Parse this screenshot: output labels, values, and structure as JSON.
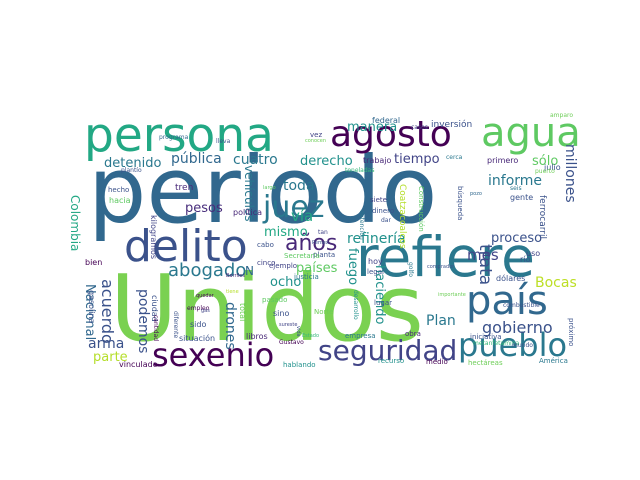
{
  "word_cloud": {
    "words": [
      {
        "text": "periodo",
        "color": "#31688e"
      },
      {
        "text": "Unidos",
        "color": "#7ad151"
      },
      {
        "text": "persona",
        "color": "#22a884"
      },
      {
        "text": "refiere",
        "color": "#2a788e"
      },
      {
        "text": "agosto",
        "color": "#440154"
      },
      {
        "text": "agua",
        "color": "#5ec962"
      },
      {
        "text": "delito",
        "color": "#3b528b"
      },
      {
        "text": "país",
        "color": "#31688e"
      },
      {
        "text": "sexenio",
        "color": "#440154"
      },
      {
        "text": "seguridad",
        "color": "#414487"
      },
      {
        "text": "pueblo",
        "color": "#2a788e"
      },
      {
        "text": "juez",
        "color": "#2a788e"
      },
      {
        "text": "años",
        "color": "#482878"
      },
      {
        "text": "abogado",
        "color": "#2a788e"
      },
      {
        "text": "gobierno",
        "color": "#3b528b"
      },
      {
        "text": "trata",
        "color": "#3b528b"
      },
      {
        "text": "informe",
        "color": "#2a788e"
      },
      {
        "text": "detenido",
        "color": "#2a788e"
      },
      {
        "text": "pública",
        "color": "#31688e"
      },
      {
        "text": "cuatro",
        "color": "#2a788e"
      },
      {
        "text": "derecho",
        "color": "#21918c"
      },
      {
        "text": "tiempo",
        "color": "#414487"
      },
      {
        "text": "sólo",
        "color": "#5ec962"
      },
      {
        "text": "millones",
        "color": "#3b528b"
      },
      {
        "text": "manera",
        "color": "#21918c"
      },
      {
        "text": "pesos",
        "color": "#472d7b"
      },
      {
        "text": "vía",
        "color": "#22a884"
      },
      {
        "text": "toda",
        "color": "#2a788e"
      },
      {
        "text": "mismo",
        "color": "#22a884"
      },
      {
        "text": "refinería",
        "color": "#21918c"
      },
      {
        "text": "proceso",
        "color": "#3b528b"
      },
      {
        "text": "mes",
        "color": "#414487"
      },
      {
        "text": "países",
        "color": "#5ec962"
      },
      {
        "text": "fuego",
        "color": "#21918c"
      },
      {
        "text": "haciendo",
        "color": "#21918c"
      },
      {
        "text": "Bocas",
        "color": "#bddf26"
      },
      {
        "text": "acuerdo",
        "color": "#3b528b"
      },
      {
        "text": "podemos",
        "color": "#3b528b"
      },
      {
        "text": "drones",
        "color": "#31688e"
      },
      {
        "text": "arma",
        "color": "#3b528b"
      },
      {
        "text": "parte",
        "color": "#b5de2b"
      },
      {
        "text": "Plan",
        "color": "#2a788e"
      },
      {
        "text": "Nacional",
        "color": "#31688e"
      },
      {
        "text": "Colombia",
        "color": "#22a884"
      },
      {
        "text": "vehículos",
        "color": "#2a788e"
      },
      {
        "text": "ocho",
        "color": "#21918c"
      },
      {
        "text": "N",
        "color": "#31688e"
      },
      {
        "text": "inversión",
        "color": "#3b528b"
      },
      {
        "text": "federal",
        "color": "#31688e"
      },
      {
        "text": "amparo",
        "color": "#6ece58"
      },
      {
        "text": "vez",
        "color": "#414487"
      },
      {
        "text": "programa",
        "color": "#31688e"
      },
      {
        "text": "lleva",
        "color": "#3b528b"
      },
      {
        "text": "casos",
        "color": "#414487"
      },
      {
        "text": "toneladas",
        "color": "#35b779"
      },
      {
        "text": "cerca",
        "color": "#2a788e"
      },
      {
        "text": "primero",
        "color": "#482878"
      },
      {
        "text": "julio",
        "color": "#3b528b"
      },
      {
        "text": "trabajo",
        "color": "#482878"
      },
      {
        "text": "puerto",
        "color": "#6ece58"
      },
      {
        "text": "hecho",
        "color": "#3b528b"
      },
      {
        "text": "plantío",
        "color": "#3b528b"
      },
      {
        "text": "hacia",
        "color": "#5ec962"
      },
      {
        "text": "tren",
        "color": "#482878"
      },
      {
        "text": "kilogramos",
        "color": "#414487"
      },
      {
        "text": "política",
        "color": "#482878"
      },
      {
        "text": "siete",
        "color": "#414487"
      },
      {
        "text": "dinero",
        "color": "#3b528b"
      },
      {
        "text": "Coatzacoalcos",
        "color": "#b5de2b"
      },
      {
        "text": "Construcción",
        "color": "#5ec962"
      },
      {
        "text": "búsqueda",
        "color": "#3b528b"
      },
      {
        "text": "ferrocarril",
        "color": "#3b528b"
      },
      {
        "text": "seis",
        "color": "#2a788e"
      },
      {
        "text": "gente",
        "color": "#3b528b"
      },
      {
        "text": "hoy",
        "color": "#414487"
      },
      {
        "text": "cabo",
        "color": "#3b528b"
      },
      {
        "text": "planta",
        "color": "#3b528b"
      },
      {
        "text": "ejemplo",
        "color": "#414487"
      },
      {
        "text": "justicia",
        "color": "#2a788e"
      },
      {
        "text": "Secretaría",
        "color": "#5ec962"
      },
      {
        "text": "cinco",
        "color": "#414487"
      },
      {
        "text": "legal",
        "color": "#3b528b"
      },
      {
        "text": "golfo",
        "color": "#2a788e"
      },
      {
        "text": "dólares",
        "color": "#3b528b"
      },
      {
        "text": "uso",
        "color": "#414487"
      },
      {
        "text": "río",
        "color": "#3b528b"
      },
      {
        "text": "bien",
        "color": "#440154"
      },
      {
        "text": "gasolina",
        "color": "#3b528b"
      },
      {
        "text": "ciudad",
        "color": "#3b528b"
      },
      {
        "text": "cantidad",
        "color": "#440154"
      },
      {
        "text": "empleo",
        "color": "#440154"
      },
      {
        "text": "quedar",
        "color": "#440154"
      },
      {
        "text": "diferente",
        "color": "#3b528b"
      },
      {
        "text": "Barriles",
        "color": "#482878"
      },
      {
        "text": "pasado",
        "color": "#5ec962"
      },
      {
        "text": "total",
        "color": "#6ece58"
      },
      {
        "text": "sido",
        "color": "#3b528b"
      },
      {
        "text": "sino",
        "color": "#3b528b"
      },
      {
        "text": "Norte",
        "color": "#6ece58"
      },
      {
        "text": "lugar",
        "color": "#3b528b"
      },
      {
        "text": "importante",
        "color": "#6ece58"
      },
      {
        "text": "combustible",
        "color": "#3b528b"
      },
      {
        "text": "próximo",
        "color": "#3b528b"
      },
      {
        "text": "situación",
        "color": "#3b528b"
      },
      {
        "text": "libros",
        "color": "#482878"
      },
      {
        "text": "Gustavo",
        "color": "#440154"
      },
      {
        "text": "empresa",
        "color": "#2a788e"
      },
      {
        "text": "obra",
        "color": "#482878"
      },
      {
        "text": "iniciativa",
        "color": "#3b528b"
      },
      {
        "text": "metanfetamina",
        "color": "#35b779"
      },
      {
        "text": "mundo",
        "color": "#3b528b"
      },
      {
        "text": "vinculado",
        "color": "#440154"
      },
      {
        "text": "hablando",
        "color": "#21918c"
      },
      {
        "text": "recurso",
        "color": "#21918c"
      },
      {
        "text": "medio",
        "color": "#440154"
      },
      {
        "text": "hectáreas",
        "color": "#6ece58"
      },
      {
        "text": "América",
        "color": "#2a788e"
      },
      {
        "text": "desarrollo",
        "color": "#21918c"
      },
      {
        "text": "conocen",
        "color": "#6ece58"
      },
      {
        "text": "gas",
        "color": "#414487"
      },
      {
        "text": "sureste",
        "color": "#414487"
      },
      {
        "text": "tan",
        "color": "#414487"
      },
      {
        "text": "Pemex",
        "color": "#3b528b"
      },
      {
        "text": "detención",
        "color": "#2a788e"
      },
      {
        "text": "dar",
        "color": "#3b528b"
      },
      {
        "text": "largo",
        "color": "#5ec962"
      },
      {
        "text": "pozo",
        "color": "#31688e"
      },
      {
        "text": "comprador",
        "color": "#3b528b"
      },
      {
        "text": "tiene",
        "color": "#b5de2b"
      },
      {
        "text": "vida",
        "color": "#3b528b"
      },
      {
        "text": "Estado",
        "color": "#35b779"
      }
    ]
  }
}
